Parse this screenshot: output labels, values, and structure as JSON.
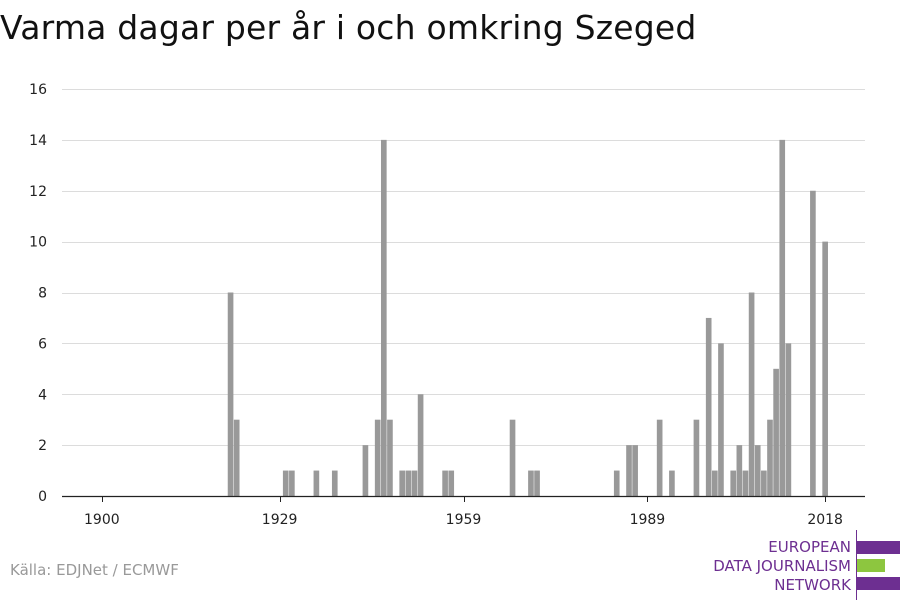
{
  "chart_data": {
    "type": "bar",
    "title": "Varma dagar per år i och omkring Szeged",
    "xlabel": "",
    "ylabel": "",
    "xlim": [
      1893.5,
      2024.5
    ],
    "ylim": [
      0,
      16
    ],
    "yticks": [
      0,
      2,
      4,
      6,
      8,
      10,
      12,
      14,
      16
    ],
    "xticks": [
      1900,
      1929,
      1959,
      1989,
      2018
    ],
    "grid": true,
    "bar_color": "#999999",
    "x": [
      1921,
      1922,
      1930,
      1931,
      1935,
      1938,
      1943,
      1945,
      1946,
      1947,
      1949,
      1950,
      1951,
      1952,
      1956,
      1957,
      1967,
      1970,
      1971,
      1984,
      1986,
      1987,
      1991,
      1993,
      1997,
      1999,
      2000,
      2001,
      2003,
      2004,
      2005,
      2006,
      2007,
      2008,
      2009,
      2010,
      2011,
      2012,
      2013,
      2014,
      2016,
      2018
    ],
    "values": [
      8,
      3,
      1,
      1,
      1,
      1,
      2,
      3,
      14,
      3,
      1,
      1,
      1,
      4,
      1,
      1,
      3,
      1,
      1,
      1,
      2,
      2,
      3,
      1,
      3,
      7,
      1,
      6,
      1,
      2,
      1,
      8,
      2,
      1,
      3,
      5,
      14,
      6,
      0,
      0,
      12,
      10
    ]
  },
  "source": "Källa: EDJNet / ECMWF",
  "logo": {
    "line1": "EUROPEAN",
    "line2": "DATA JOURNALISM",
    "line3": "NETWORK",
    "purple": "#6d2f91",
    "green": "#8dc63f"
  }
}
